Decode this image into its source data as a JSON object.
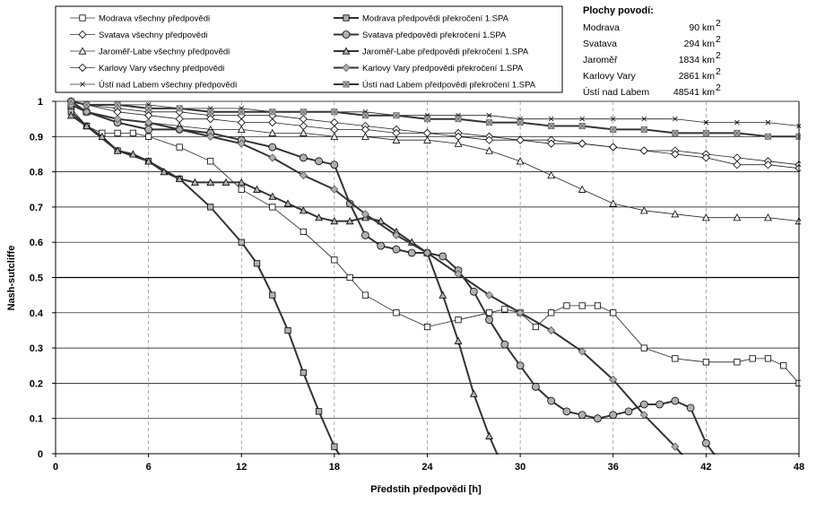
{
  "chart_data": {
    "type": "line",
    "title": "",
    "xlabel": "Předstih předpovědi [h]",
    "ylabel": "Nash-sutcliffe",
    "xlim": [
      0,
      48
    ],
    "ylim": [
      0,
      1
    ],
    "xticks": [
      0,
      6,
      12,
      18,
      24,
      30,
      36,
      42,
      48
    ],
    "yticks": [
      0,
      0.1,
      0.2,
      0.3,
      0.4,
      0.5,
      0.6,
      0.7,
      0.8,
      0.9,
      1
    ],
    "reference_line": 0.5,
    "series": [
      {
        "name": "Modrava všechny předpovědi",
        "marker": "square-open",
        "width": 0.8,
        "x": [
          1,
          2,
          3,
          4,
          5,
          6,
          8,
          10,
          12,
          14,
          16,
          18,
          19,
          20,
          22,
          24,
          26,
          28,
          29,
          30,
          31,
          32,
          33,
          34,
          35,
          36,
          38,
          40,
          42,
          44,
          45,
          46,
          47,
          48
        ],
        "y": [
          0.98,
          0.93,
          0.91,
          0.91,
          0.91,
          0.9,
          0.87,
          0.83,
          0.75,
          0.7,
          0.63,
          0.55,
          0.5,
          0.45,
          0.4,
          0.36,
          0.38,
          0.4,
          0.41,
          0.4,
          0.36,
          0.4,
          0.42,
          0.42,
          0.42,
          0.4,
          0.3,
          0.27,
          0.26,
          0.26,
          0.27,
          0.27,
          0.25,
          0.2
        ]
      },
      {
        "name": "Svatava všechny předpovědi",
        "marker": "diamond-open",
        "width": 0.8,
        "x": [
          1,
          2,
          4,
          6,
          8,
          10,
          12,
          14,
          16,
          18,
          20,
          22,
          24,
          26,
          28,
          30,
          32,
          34,
          36,
          38,
          40,
          42,
          44,
          46,
          48
        ],
        "y": [
          1,
          0.99,
          0.98,
          0.97,
          0.97,
          0.96,
          0.96,
          0.96,
          0.95,
          0.94,
          0.93,
          0.92,
          0.91,
          0.91,
          0.9,
          0.89,
          0.89,
          0.88,
          0.87,
          0.86,
          0.86,
          0.85,
          0.84,
          0.83,
          0.82
        ]
      },
      {
        "name": "Jaroměř-Labe všechny předpovědi",
        "marker": "triangle-open",
        "width": 0.8,
        "x": [
          1,
          2,
          4,
          6,
          8,
          10,
          12,
          14,
          16,
          18,
          20,
          22,
          24,
          26,
          28,
          30,
          32,
          34,
          36,
          38,
          40,
          42,
          44,
          46,
          48
        ],
        "y": [
          0.99,
          0.97,
          0.95,
          0.94,
          0.93,
          0.92,
          0.92,
          0.91,
          0.91,
          0.9,
          0.9,
          0.89,
          0.89,
          0.88,
          0.86,
          0.83,
          0.79,
          0.75,
          0.71,
          0.69,
          0.68,
          0.67,
          0.67,
          0.67,
          0.66
        ]
      },
      {
        "name": "Karlovy Vary všechny předpovědi",
        "marker": "diamond-open",
        "width": 0.8,
        "x": [
          1,
          2,
          4,
          6,
          8,
          10,
          12,
          14,
          16,
          18,
          20,
          22,
          24,
          26,
          28,
          30,
          32,
          34,
          36,
          38,
          40,
          42,
          44,
          46,
          48
        ],
        "y": [
          1,
          0.99,
          0.97,
          0.96,
          0.95,
          0.95,
          0.94,
          0.94,
          0.93,
          0.92,
          0.92,
          0.91,
          0.91,
          0.9,
          0.89,
          0.89,
          0.88,
          0.88,
          0.87,
          0.86,
          0.85,
          0.84,
          0.82,
          0.82,
          0.81
        ]
      },
      {
        "name": "Ústí nad Labem všechny předpovědi",
        "marker": "x",
        "width": 0.8,
        "x": [
          1,
          2,
          4,
          6,
          8,
          10,
          12,
          14,
          16,
          18,
          20,
          22,
          24,
          26,
          28,
          30,
          32,
          34,
          36,
          38,
          40,
          42,
          44,
          46,
          48
        ],
        "y": [
          1,
          0.99,
          0.99,
          0.99,
          0.98,
          0.98,
          0.98,
          0.97,
          0.97,
          0.97,
          0.97,
          0.96,
          0.96,
          0.96,
          0.96,
          0.95,
          0.95,
          0.95,
          0.95,
          0.95,
          0.95,
          0.94,
          0.94,
          0.94,
          0.93
        ]
      },
      {
        "name": "Modrava  předpovědi překročení 1.SPA",
        "marker": "square-filled",
        "width": 2,
        "x": [
          1,
          2,
          4,
          6,
          8,
          10,
          12,
          13,
          14,
          15,
          16,
          17,
          18,
          18.7
        ],
        "y": [
          0.97,
          0.93,
          0.86,
          0.83,
          0.78,
          0.7,
          0.6,
          0.54,
          0.45,
          0.35,
          0.23,
          0.12,
          0.02,
          -0.03
        ]
      },
      {
        "name": "Svatava  předpovědi překročení 1.SPA",
        "marker": "circle-filled",
        "width": 2,
        "x": [
          1,
          2,
          4,
          6,
          8,
          10,
          12,
          14,
          16,
          17,
          18,
          19,
          20,
          21,
          22,
          23,
          24,
          25,
          26,
          27,
          28,
          29,
          30,
          31,
          32,
          33,
          34,
          35,
          36,
          37,
          38,
          39,
          40,
          41,
          42,
          43
        ],
        "y": [
          1,
          0.97,
          0.94,
          0.92,
          0.92,
          0.91,
          0.89,
          0.87,
          0.84,
          0.83,
          0.82,
          0.71,
          0.62,
          0.59,
          0.58,
          0.57,
          0.57,
          0.56,
          0.52,
          0.46,
          0.38,
          0.31,
          0.25,
          0.19,
          0.15,
          0.12,
          0.11,
          0.1,
          0.11,
          0.12,
          0.14,
          0.14,
          0.15,
          0.13,
          0.03,
          -0.03
        ]
      },
      {
        "name": "Jaroměř-Labe  předpovědi překročení 1.SPA",
        "marker": "triangle-filled",
        "width": 2,
        "x": [
          1,
          2,
          3,
          4,
          5,
          6,
          7,
          8,
          9,
          10,
          11,
          12,
          13,
          14,
          15,
          16,
          17,
          18,
          19,
          20,
          21,
          22,
          23,
          24,
          25,
          26,
          27,
          28,
          28.8
        ],
        "y": [
          0.96,
          0.93,
          0.9,
          0.86,
          0.85,
          0.83,
          0.8,
          0.78,
          0.77,
          0.77,
          0.77,
          0.77,
          0.75,
          0.73,
          0.71,
          0.69,
          0.67,
          0.66,
          0.66,
          0.67,
          0.66,
          0.63,
          0.6,
          0.57,
          0.45,
          0.32,
          0.17,
          0.05,
          -0.03
        ]
      },
      {
        "name": "Karlovy Vary  předpovědi překročení 1.SPA",
        "marker": "diamond-filled",
        "width": 2,
        "x": [
          1,
          2,
          4,
          6,
          8,
          10,
          12,
          14,
          16,
          18,
          20,
          22,
          24,
          26,
          28,
          30,
          32,
          34,
          36,
          38,
          40,
          41
        ],
        "y": [
          0.99,
          0.97,
          0.95,
          0.94,
          0.92,
          0.9,
          0.88,
          0.84,
          0.79,
          0.75,
          0.68,
          0.62,
          0.57,
          0.51,
          0.45,
          0.4,
          0.35,
          0.29,
          0.21,
          0.11,
          0.02,
          -0.03
        ]
      },
      {
        "name": "Ústí nad Labem  předpovědi překročení 1.SPA",
        "marker": "star-filled",
        "width": 2,
        "x": [
          1,
          2,
          4,
          6,
          8,
          10,
          12,
          14,
          16,
          18,
          20,
          22,
          24,
          26,
          28,
          30,
          32,
          34,
          36,
          38,
          40,
          42,
          44,
          46,
          48
        ],
        "y": [
          1,
          0.99,
          0.99,
          0.98,
          0.98,
          0.97,
          0.97,
          0.97,
          0.97,
          0.97,
          0.96,
          0.96,
          0.95,
          0.95,
          0.94,
          0.94,
          0.93,
          0.93,
          0.92,
          0.92,
          0.91,
          0.91,
          0.91,
          0.9,
          0.9
        ]
      }
    ]
  },
  "areas": {
    "title": "Plochy povodí:",
    "rows": [
      {
        "name": "Modrava",
        "value": "90 km",
        "sup": "2"
      },
      {
        "name": "Svatava",
        "value": "294 km",
        "sup": "2"
      },
      {
        "name": "Jaroměř",
        "value": "1834 km",
        "sup": "2"
      },
      {
        "name": "Karlovy Vary",
        "value": "2861 km",
        "sup": "2"
      },
      {
        "name": "Ústí nad Labem",
        "value": "48541 km",
        "sup": "2"
      }
    ]
  }
}
